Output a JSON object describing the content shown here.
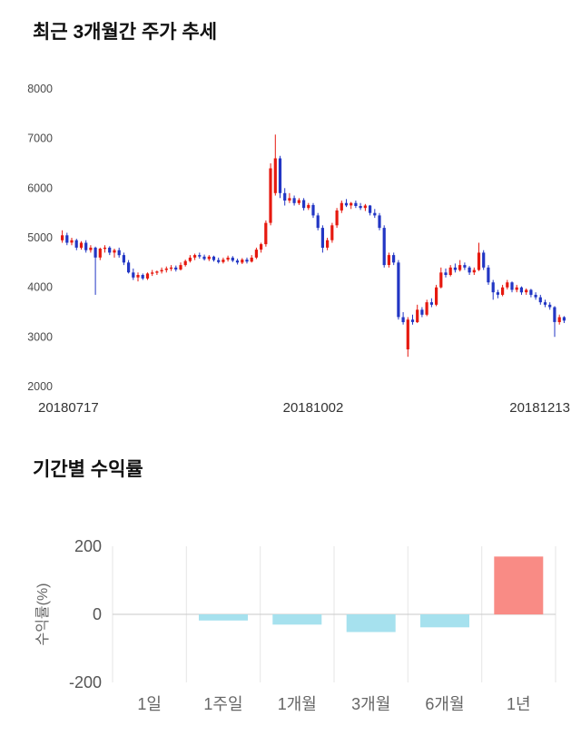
{
  "chart_data": [
    {
      "type": "candlestick",
      "title": "최근 3개월간 주가 추세",
      "x_labels": [
        "20180717",
        "20181002",
        "20181213"
      ],
      "y_axis": {
        "min": 2000,
        "max": 8000,
        "ticks": [
          2000,
          3000,
          4000,
          5000,
          6000,
          7000,
          8000
        ]
      },
      "up_color": "#e6190f",
      "down_color": "#2236c4",
      "grid": false,
      "candles": [
        [
          4950,
          5150,
          4900,
          5050
        ],
        [
          5050,
          5100,
          4850,
          4900
        ],
        [
          4900,
          5000,
          4850,
          4950
        ],
        [
          4950,
          4980,
          4750,
          4800
        ],
        [
          4800,
          4930,
          4760,
          4900
        ],
        [
          4900,
          4950,
          4700,
          4750
        ],
        [
          4750,
          4850,
          4700,
          4800
        ],
        [
          4800,
          4820,
          3850,
          4600
        ],
        [
          4600,
          4800,
          4550,
          4780
        ],
        [
          4780,
          4850,
          4700,
          4800
        ],
        [
          4800,
          4830,
          4650,
          4700
        ],
        [
          4700,
          4780,
          4600,
          4750
        ],
        [
          4750,
          4800,
          4600,
          4650
        ],
        [
          4650,
          4700,
          4450,
          4500
        ],
        [
          4500,
          4550,
          4280,
          4300
        ],
        [
          4300,
          4380,
          4150,
          4200
        ],
        [
          4200,
          4300,
          4120,
          4250
        ],
        [
          4250,
          4280,
          4150,
          4180
        ],
        [
          4180,
          4300,
          4150,
          4280
        ],
        [
          4280,
          4350,
          4230,
          4300
        ],
        [
          4300,
          4340,
          4250,
          4320
        ],
        [
          4320,
          4400,
          4280,
          4350
        ],
        [
          4350,
          4420,
          4300,
          4380
        ],
        [
          4380,
          4450,
          4330,
          4400
        ],
        [
          4400,
          4440,
          4320,
          4360
        ],
        [
          4360,
          4500,
          4340,
          4450
        ],
        [
          4450,
          4560,
          4420,
          4530
        ],
        [
          4530,
          4650,
          4500,
          4600
        ],
        [
          4600,
          4680,
          4550,
          4650
        ],
        [
          4650,
          4700,
          4580,
          4620
        ],
        [
          4620,
          4660,
          4540,
          4570
        ],
        [
          4570,
          4650,
          4530,
          4620
        ],
        [
          4620,
          4640,
          4520,
          4550
        ],
        [
          4550,
          4600,
          4480,
          4510
        ],
        [
          4510,
          4600,
          4480,
          4560
        ],
        [
          4560,
          4640,
          4520,
          4600
        ],
        [
          4600,
          4630,
          4510,
          4540
        ],
        [
          4540,
          4580,
          4460,
          4500
        ],
        [
          4500,
          4590,
          4470,
          4560
        ],
        [
          4560,
          4600,
          4480,
          4520
        ],
        [
          4520,
          4650,
          4500,
          4600
        ],
        [
          4600,
          4800,
          4570,
          4760
        ],
        [
          4760,
          4900,
          4700,
          4870
        ],
        [
          4870,
          5350,
          4820,
          5300
        ],
        [
          5300,
          6500,
          5250,
          6400
        ],
        [
          5900,
          7080,
          5850,
          6600
        ],
        [
          6600,
          6650,
          5800,
          5900
        ],
        [
          5900,
          6000,
          5650,
          5750
        ],
        [
          5750,
          5900,
          5700,
          5800
        ],
        [
          5800,
          5850,
          5650,
          5700
        ],
        [
          5700,
          5800,
          5660,
          5760
        ],
        [
          5760,
          5800,
          5550,
          5600
        ],
        [
          5600,
          5700,
          5560,
          5660
        ],
        [
          5660,
          5700,
          5400,
          5450
        ],
        [
          5450,
          5500,
          5150,
          5200
        ],
        [
          5200,
          5250,
          4700,
          4800
        ],
        [
          4800,
          5000,
          4750,
          4950
        ],
        [
          4950,
          5300,
          4900,
          5250
        ],
        [
          5250,
          5600,
          5200,
          5550
        ],
        [
          5550,
          5750,
          5500,
          5700
        ],
        [
          5700,
          5780,
          5620,
          5650
        ],
        [
          5650,
          5720,
          5580,
          5700
        ],
        [
          5700,
          5750,
          5600,
          5640
        ],
        [
          5640,
          5700,
          5560,
          5600
        ],
        [
          5600,
          5680,
          5540,
          5650
        ],
        [
          5650,
          5660,
          5450,
          5500
        ],
        [
          5500,
          5580,
          5400,
          5450
        ],
        [
          5450,
          5500,
          5150,
          5200
        ],
        [
          5200,
          5250,
          4400,
          4450
        ],
        [
          4450,
          4700,
          4400,
          4650
        ],
        [
          4650,
          4700,
          4450,
          4500
        ],
        [
          4500,
          4550,
          3350,
          3400
        ],
        [
          3400,
          3500,
          3250,
          3300
        ],
        [
          2750,
          3400,
          2600,
          3350
        ],
        [
          3350,
          3450,
          3250,
          3300
        ],
        [
          3300,
          3650,
          3280,
          3550
        ],
        [
          3550,
          3600,
          3400,
          3450
        ],
        [
          3450,
          3750,
          3420,
          3700
        ],
        [
          3700,
          3780,
          3600,
          3650
        ],
        [
          3650,
          4050,
          3620,
          4000
        ],
        [
          4000,
          4400,
          3980,
          4300
        ],
        [
          4300,
          4380,
          4200,
          4250
        ],
        [
          4250,
          4450,
          4220,
          4400
        ],
        [
          4400,
          4480,
          4300,
          4350
        ],
        [
          4350,
          4550,
          4320,
          4450
        ],
        [
          4450,
          4500,
          4350,
          4400
        ],
        [
          4400,
          4430,
          4250,
          4300
        ],
        [
          4300,
          4400,
          4250,
          4350
        ],
        [
          4350,
          4900,
          4330,
          4700
        ],
        [
          4700,
          4750,
          4350,
          4400
        ],
        [
          4400,
          4450,
          4050,
          4100
        ],
        [
          4100,
          4150,
          3750,
          3900
        ],
        [
          3900,
          3950,
          3780,
          3850
        ],
        [
          3850,
          4050,
          3820,
          4000
        ],
        [
          4000,
          4150,
          3960,
          4100
        ],
        [
          4100,
          4120,
          3900,
          3950
        ],
        [
          3950,
          4050,
          3900,
          4000
        ],
        [
          4000,
          4020,
          3850,
          3900
        ],
        [
          3900,
          3980,
          3850,
          3950
        ],
        [
          3950,
          3970,
          3800,
          3850
        ],
        [
          3850,
          3900,
          3750,
          3800
        ],
        [
          3800,
          3850,
          3650,
          3700
        ],
        [
          3700,
          3750,
          3600,
          3650
        ],
        [
          3650,
          3700,
          3550,
          3600
        ],
        [
          3600,
          3620,
          3000,
          3300
        ],
        [
          3300,
          3450,
          3250,
          3400
        ],
        [
          3400,
          3420,
          3280,
          3330
        ]
      ]
    },
    {
      "type": "bar",
      "title": "기간별 수익률",
      "ylabel": "수익률(%)",
      "categories": [
        "1일",
        "1주일",
        "1개월",
        "3개월",
        "6개월",
        "1년"
      ],
      "values": [
        0,
        -18,
        -30,
        -52,
        -38,
        170
      ],
      "ylim": [
        -200,
        200
      ],
      "y_ticks": [
        200,
        0,
        -200
      ],
      "negative_color": "#a6e1ee",
      "positive_color": "#f98b85",
      "zero_line_color": "#c9c9c9",
      "grid_color": "#e6e6e6",
      "legend": "none"
    }
  ]
}
